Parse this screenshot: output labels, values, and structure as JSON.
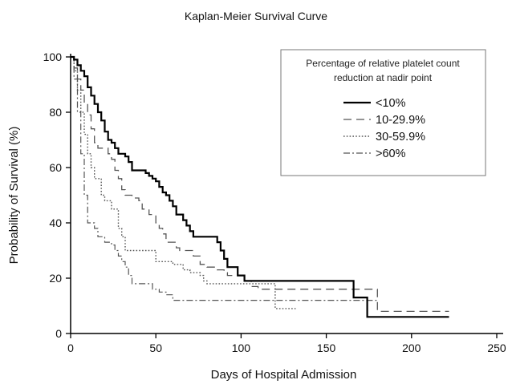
{
  "chart_data": {
    "type": "line",
    "title": "Kaplan-Meier Survival Curve",
    "xlabel": "Days of Hospital Admission",
    "ylabel": "Probability of Survival (%)",
    "xlim": [
      0,
      250
    ],
    "ylim": [
      0,
      100
    ],
    "xticks": [
      0,
      50,
      100,
      150,
      200,
      250
    ],
    "yticks": [
      0,
      20,
      40,
      60,
      80,
      100
    ],
    "grid": false,
    "legend": {
      "placement": "top-right",
      "title_lines": [
        "Percentage of relative platelet count",
        "reduction at nadir point"
      ]
    },
    "series": [
      {
        "name": "<10%",
        "style": "solid",
        "color": "#000000",
        "points": [
          [
            0,
            100
          ],
          [
            2,
            99
          ],
          [
            4,
            97
          ],
          [
            6,
            95
          ],
          [
            8,
            93
          ],
          [
            10,
            89
          ],
          [
            12,
            86
          ],
          [
            14,
            83
          ],
          [
            16,
            80
          ],
          [
            18,
            77
          ],
          [
            20,
            73
          ],
          [
            22,
            70
          ],
          [
            24,
            69
          ],
          [
            26,
            67
          ],
          [
            28,
            65
          ],
          [
            30,
            65
          ],
          [
            32,
            64
          ],
          [
            34,
            62
          ],
          [
            36,
            59
          ],
          [
            40,
            59
          ],
          [
            44,
            58
          ],
          [
            46,
            57
          ],
          [
            48,
            56
          ],
          [
            50,
            55
          ],
          [
            52,
            53
          ],
          [
            54,
            51
          ],
          [
            56,
            50
          ],
          [
            58,
            48
          ],
          [
            60,
            46
          ],
          [
            62,
            43
          ],
          [
            66,
            41
          ],
          [
            68,
            39
          ],
          [
            70,
            37
          ],
          [
            72,
            35
          ],
          [
            84,
            35
          ],
          [
            86,
            33
          ],
          [
            88,
            30
          ],
          [
            90,
            27
          ],
          [
            92,
            24
          ],
          [
            96,
            24
          ],
          [
            98,
            21
          ],
          [
            100,
            21
          ],
          [
            102,
            19
          ],
          [
            164,
            19
          ],
          [
            166,
            13
          ],
          [
            172,
            13
          ],
          [
            174,
            6
          ],
          [
            222,
            6
          ]
        ]
      },
      {
        "name": "10-29.9%",
        "style": "dashed",
        "color": "#555555",
        "points": [
          [
            0,
            100
          ],
          [
            2,
            96
          ],
          [
            4,
            92
          ],
          [
            6,
            88
          ],
          [
            8,
            83
          ],
          [
            10,
            79
          ],
          [
            12,
            74
          ],
          [
            14,
            69
          ],
          [
            16,
            67
          ],
          [
            20,
            67
          ],
          [
            22,
            65
          ],
          [
            24,
            63
          ],
          [
            26,
            59
          ],
          [
            28,
            56
          ],
          [
            30,
            52
          ],
          [
            32,
            50
          ],
          [
            36,
            49
          ],
          [
            40,
            48
          ],
          [
            42,
            45
          ],
          [
            46,
            43
          ],
          [
            50,
            40
          ],
          [
            52,
            38
          ],
          [
            54,
            36
          ],
          [
            56,
            33
          ],
          [
            60,
            33
          ],
          [
            62,
            31
          ],
          [
            64,
            30
          ],
          [
            70,
            30
          ],
          [
            72,
            28
          ],
          [
            76,
            25
          ],
          [
            80,
            24
          ],
          [
            84,
            24
          ],
          [
            86,
            23
          ],
          [
            90,
            22
          ],
          [
            92,
            21
          ],
          [
            100,
            21
          ],
          [
            102,
            19
          ],
          [
            106,
            17
          ],
          [
            110,
            16
          ],
          [
            178,
            16
          ],
          [
            180,
            8
          ],
          [
            222,
            8
          ]
        ]
      },
      {
        "name": "30-59.9%",
        "style": "dotted",
        "color": "#555555",
        "points": [
          [
            0,
            100
          ],
          [
            2,
            95
          ],
          [
            4,
            88
          ],
          [
            6,
            80
          ],
          [
            8,
            72
          ],
          [
            10,
            65
          ],
          [
            12,
            60
          ],
          [
            14,
            56
          ],
          [
            18,
            50
          ],
          [
            20,
            48
          ],
          [
            24,
            45
          ],
          [
            28,
            38
          ],
          [
            30,
            35
          ],
          [
            32,
            30
          ],
          [
            48,
            30
          ],
          [
            50,
            26
          ],
          [
            56,
            26
          ],
          [
            60,
            25
          ],
          [
            66,
            23
          ],
          [
            70,
            22
          ],
          [
            76,
            21
          ],
          [
            78,
            19
          ],
          [
            80,
            18
          ],
          [
            118,
            18
          ],
          [
            120,
            9
          ],
          [
            132,
            9
          ]
        ]
      },
      {
        "name": ">60%",
        "style": "dashdot",
        "color": "#555555",
        "points": [
          [
            0,
            100
          ],
          [
            2,
            92
          ],
          [
            4,
            80
          ],
          [
            6,
            65
          ],
          [
            8,
            50
          ],
          [
            10,
            40
          ],
          [
            14,
            38
          ],
          [
            16,
            35
          ],
          [
            20,
            33
          ],
          [
            24,
            32
          ],
          [
            26,
            30
          ],
          [
            28,
            28
          ],
          [
            30,
            26
          ],
          [
            32,
            24
          ],
          [
            34,
            21
          ],
          [
            36,
            18
          ],
          [
            46,
            18
          ],
          [
            48,
            16
          ],
          [
            52,
            15
          ],
          [
            56,
            14
          ],
          [
            60,
            12
          ],
          [
            100,
            12
          ],
          [
            180,
            12
          ]
        ]
      }
    ]
  }
}
